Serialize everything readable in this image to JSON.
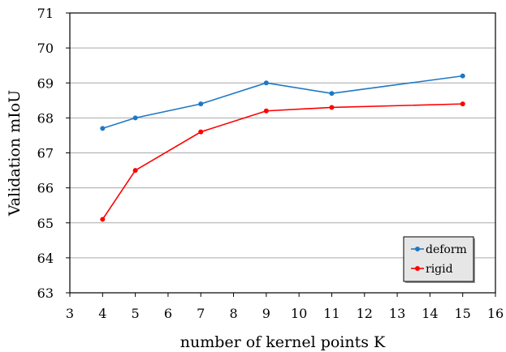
{
  "chart_data": {
    "type": "line",
    "title": "",
    "xlabel": "number of kernel points K",
    "ylabel": "Validation mIoU",
    "xlim": [
      3,
      16
    ],
    "ylim": [
      63,
      71
    ],
    "x_ticks": [
      3,
      4,
      5,
      6,
      7,
      8,
      9,
      10,
      11,
      12,
      13,
      14,
      15,
      16
    ],
    "y_ticks": [
      63,
      64,
      65,
      66,
      67,
      68,
      69,
      70,
      71
    ],
    "grid": "horizontal",
    "legend_position": "bottom-right",
    "series": [
      {
        "name": "deform",
        "color": "#1f77c4",
        "x": [
          4,
          5,
          7,
          9,
          11,
          15
        ],
        "y": [
          67.7,
          68.0,
          68.4,
          69.0,
          68.7,
          69.2
        ]
      },
      {
        "name": "rigid",
        "color": "#ff0000",
        "x": [
          4,
          5,
          7,
          9,
          11,
          15
        ],
        "y": [
          65.1,
          66.5,
          67.6,
          68.2,
          68.3,
          68.4
        ]
      }
    ]
  }
}
